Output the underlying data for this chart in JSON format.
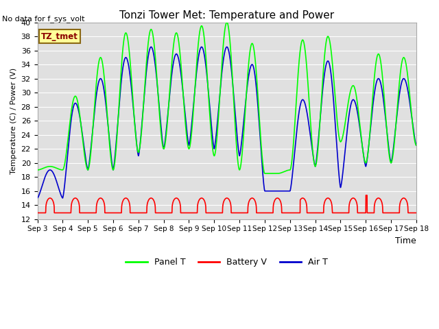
{
  "title": "Tonzi Tower Met: Temperature and Power",
  "ylabel": "Temperature (C) / Power (V)",
  "xlabel": "Time",
  "ylim": [
    12,
    40
  ],
  "yticks": [
    12,
    14,
    16,
    18,
    20,
    22,
    24,
    26,
    28,
    30,
    32,
    34,
    36,
    38,
    40
  ],
  "xtick_labels": [
    "Sep 3",
    "Sep 4",
    "Sep 5",
    "Sep 6",
    "Sep 7",
    "Sep 8",
    "Sep 9",
    "Sep 10",
    "Sep 11",
    "Sep 12",
    "Sep 13",
    "Sep 14",
    "Sep 15",
    "Sep 16",
    "Sep 17",
    "Sep 18"
  ],
  "no_data_text": "No data for f_sys_volt",
  "annotation_text": "TZ_tmet",
  "panel_color": "#00FF00",
  "battery_color": "#FF0000",
  "air_color": "#0000CC",
  "bg_color": "#E0E0E0",
  "fig_bg": "#FFFFFF",
  "grid_color": "#FFFFFF",
  "legend_labels": [
    "Panel T",
    "Battery V",
    "Air T"
  ]
}
